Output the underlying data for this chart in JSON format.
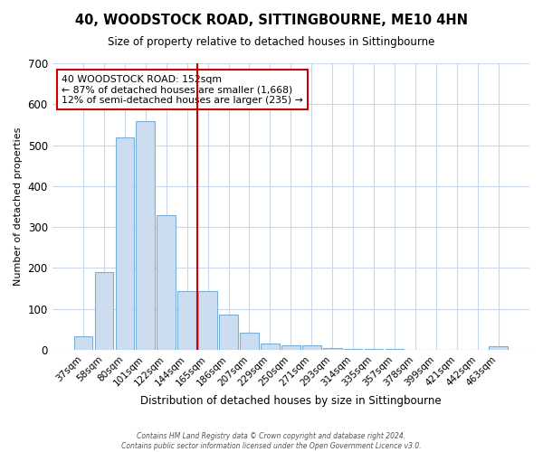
{
  "title": "40, WOODSTOCK ROAD, SITTINGBOURNE, ME10 4HN",
  "subtitle": "Size of property relative to detached houses in Sittingbourne",
  "xlabel": "Distribution of detached houses by size in Sittingbourne",
  "ylabel": "Number of detached properties",
  "bar_labels": [
    "37sqm",
    "58sqm",
    "80sqm",
    "101sqm",
    "122sqm",
    "144sqm",
    "165sqm",
    "186sqm",
    "207sqm",
    "229sqm",
    "250sqm",
    "271sqm",
    "293sqm",
    "314sqm",
    "335sqm",
    "357sqm",
    "378sqm",
    "399sqm",
    "421sqm",
    "442sqm",
    "463sqm"
  ],
  "bar_values": [
    33,
    190,
    520,
    558,
    328,
    143,
    143,
    85,
    42,
    15,
    10,
    10,
    5,
    3,
    2,
    1,
    0,
    0,
    0,
    0,
    8
  ],
  "bar_color": "#ccddf0",
  "bar_edge_color": "#7ab0d8",
  "vline_color": "#cc0000",
  "ylim": [
    0,
    700
  ],
  "yticks": [
    0,
    100,
    200,
    300,
    400,
    500,
    600,
    700
  ],
  "annotation_title": "40 WOODSTOCK ROAD: 152sqm",
  "annotation_line1": "← 87% of detached houses are smaller (1,668)",
  "annotation_line2": "12% of semi-detached houses are larger (235) →",
  "annotation_box_color": "#ffffff",
  "annotation_box_edge": "#cc0000",
  "footer_line1": "Contains HM Land Registry data © Crown copyright and database right 2024.",
  "footer_line2": "Contains public sector information licensed under the Open Government Licence v3.0.",
  "background_color": "#ffffff",
  "grid_color": "#c8d8e8"
}
